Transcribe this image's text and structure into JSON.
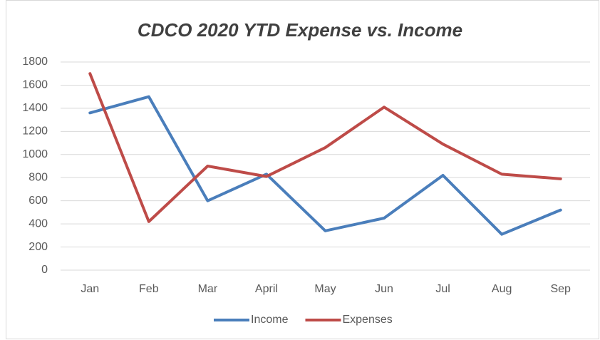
{
  "chart_data": {
    "type": "line",
    "title": "CDCO 2020 YTD Expense vs. Income",
    "categories": [
      "Jan",
      "Feb",
      "Mar",
      "April",
      "May",
      "Jun",
      "Jul",
      "Aug",
      "Sep"
    ],
    "series": [
      {
        "name": "Income",
        "color": "#4a7ebb",
        "values": [
          1360,
          1500,
          600,
          830,
          340,
          450,
          820,
          310,
          520
        ]
      },
      {
        "name": "Expenses",
        "color": "#be4b48",
        "values": [
          1700,
          420,
          900,
          810,
          1060,
          1410,
          1090,
          830,
          790
        ]
      }
    ],
    "ylim": [
      0,
      1800
    ],
    "yticks": [
      0,
      200,
      400,
      600,
      800,
      1000,
      1200,
      1400,
      1600,
      1800
    ],
    "grid": true,
    "legend": "bottom"
  }
}
